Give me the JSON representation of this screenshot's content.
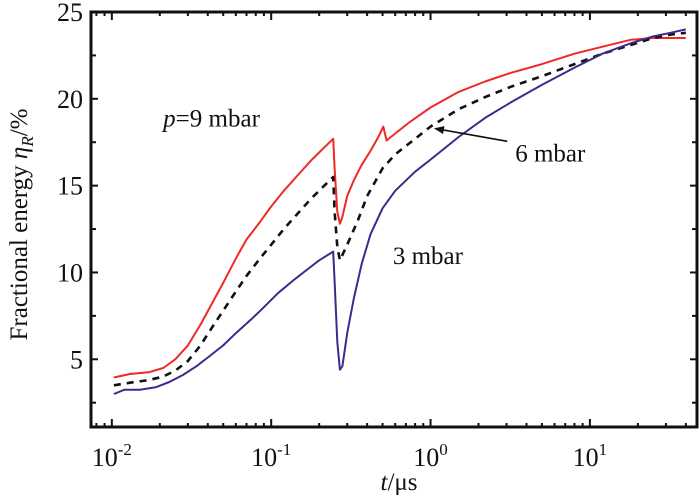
{
  "chart_data": {
    "type": "line",
    "title": "",
    "xlabel": "t/μs",
    "xlabel_italic_part": "t",
    "xlabel_rest": "/μs",
    "ylabel": "Fractional energy η_R/%",
    "ylabel_text": "Fractional energy ",
    "ylabel_symbol": "η",
    "ylabel_subscript": "R",
    "ylabel_unit": "/%",
    "xscale": "log",
    "xlim": [
      0.0074,
      47
    ],
    "ylim": [
      1.1,
      25
    ],
    "grid": false,
    "x_ticks": [
      {
        "value": 0.01,
        "base": "10",
        "exp": "-2"
      },
      {
        "value": 0.1,
        "base": "10",
        "exp": "-1"
      },
      {
        "value": 1,
        "base": "10",
        "exp": "0"
      },
      {
        "value": 10,
        "base": "10",
        "exp": "1"
      }
    ],
    "y_ticks": [
      {
        "value": 5,
        "label": "5"
      },
      {
        "value": 10,
        "label": "10"
      },
      {
        "value": 15,
        "label": "15"
      },
      {
        "value": 20,
        "label": "20"
      },
      {
        "value": 25,
        "label": "25"
      }
    ],
    "y_minor_ticks": [
      2.5,
      7.5,
      12.5,
      17.5,
      22.5
    ],
    "series": [
      {
        "name": "p=9 mbar",
        "color": "#ee2a24",
        "style": "solid",
        "x": [
          0.0103,
          0.013,
          0.017,
          0.021,
          0.025,
          0.03,
          0.036,
          0.043,
          0.05,
          0.06,
          0.07,
          0.085,
          0.1,
          0.12,
          0.15,
          0.18,
          0.21,
          0.245,
          0.25,
          0.26,
          0.27,
          0.28,
          0.3,
          0.33,
          0.37,
          0.42,
          0.47,
          0.505,
          0.53,
          0.6,
          0.75,
          1.0,
          1.5,
          2.2,
          3.2,
          5,
          8,
          12,
          18,
          25,
          32,
          40
        ],
        "y": [
          3.95,
          4.15,
          4.25,
          4.5,
          5.0,
          5.8,
          7.0,
          8.3,
          9.4,
          10.8,
          11.9,
          12.9,
          13.8,
          14.7,
          15.7,
          16.5,
          17.1,
          17.7,
          16.0,
          13.5,
          12.8,
          13.2,
          14.4,
          15.3,
          16.2,
          17.0,
          17.8,
          18.4,
          17.6,
          18.0,
          18.7,
          19.5,
          20.4,
          21.0,
          21.5,
          22.0,
          22.6,
          23.0,
          23.4,
          23.5,
          23.5,
          23.5
        ]
      },
      {
        "name": "6 mbar",
        "color": "#111111",
        "style": "dashed",
        "x": [
          0.0103,
          0.013,
          0.017,
          0.021,
          0.025,
          0.03,
          0.036,
          0.043,
          0.05,
          0.06,
          0.07,
          0.085,
          0.1,
          0.12,
          0.15,
          0.18,
          0.21,
          0.245,
          0.25,
          0.26,
          0.27,
          0.3,
          0.35,
          0.4,
          0.5,
          0.6,
          0.8,
          1.0,
          1.5,
          2.2,
          3.2,
          5,
          8,
          12,
          18,
          25,
          32,
          40
        ],
        "y": [
          3.5,
          3.65,
          3.8,
          4.0,
          4.35,
          4.9,
          5.8,
          6.9,
          7.8,
          8.9,
          9.8,
          10.8,
          11.6,
          12.5,
          13.5,
          14.3,
          14.9,
          15.5,
          13.5,
          11.5,
          10.7,
          11.6,
          13.0,
          14.4,
          16.0,
          16.8,
          17.7,
          18.4,
          19.4,
          20.1,
          20.7,
          21.3,
          22.0,
          22.6,
          23.1,
          23.5,
          23.7,
          23.8
        ]
      },
      {
        "name": "3 mbar",
        "color": "#3d2a8c",
        "style": "solid",
        "x": [
          0.0103,
          0.012,
          0.015,
          0.019,
          0.023,
          0.028,
          0.034,
          0.04,
          0.05,
          0.06,
          0.075,
          0.09,
          0.11,
          0.14,
          0.17,
          0.2,
          0.245,
          0.25,
          0.26,
          0.27,
          0.28,
          0.3,
          0.33,
          0.37,
          0.42,
          0.5,
          0.6,
          0.8,
          1.0,
          1.5,
          2.2,
          3.2,
          5,
          8,
          12,
          18,
          25,
          32,
          40
        ],
        "y": [
          3.0,
          3.25,
          3.25,
          3.4,
          3.7,
          4.1,
          4.6,
          5.1,
          5.8,
          6.5,
          7.3,
          8.0,
          8.8,
          9.6,
          10.2,
          10.7,
          11.2,
          9.5,
          6.0,
          4.4,
          4.6,
          6.5,
          8.5,
          10.5,
          12.2,
          13.7,
          14.7,
          15.8,
          16.5,
          17.8,
          18.9,
          19.8,
          20.8,
          21.8,
          22.6,
          23.2,
          23.6,
          23.8,
          24.0
        ]
      }
    ],
    "annotations": [
      {
        "id": "p9",
        "text_italic": "p",
        "text": "=9 mbar",
        "x": 0.021,
        "y": 18.4
      },
      {
        "id": "m6",
        "text": "6 mbar",
        "x": 3.4,
        "y": 16.4,
        "arrow_to": {
          "x": 1.05,
          "y": 18.3
        }
      },
      {
        "id": "m3",
        "text": "3 mbar",
        "x": 0.58,
        "y": 10.5
      }
    ],
    "legend": "none (inline annotations)"
  }
}
